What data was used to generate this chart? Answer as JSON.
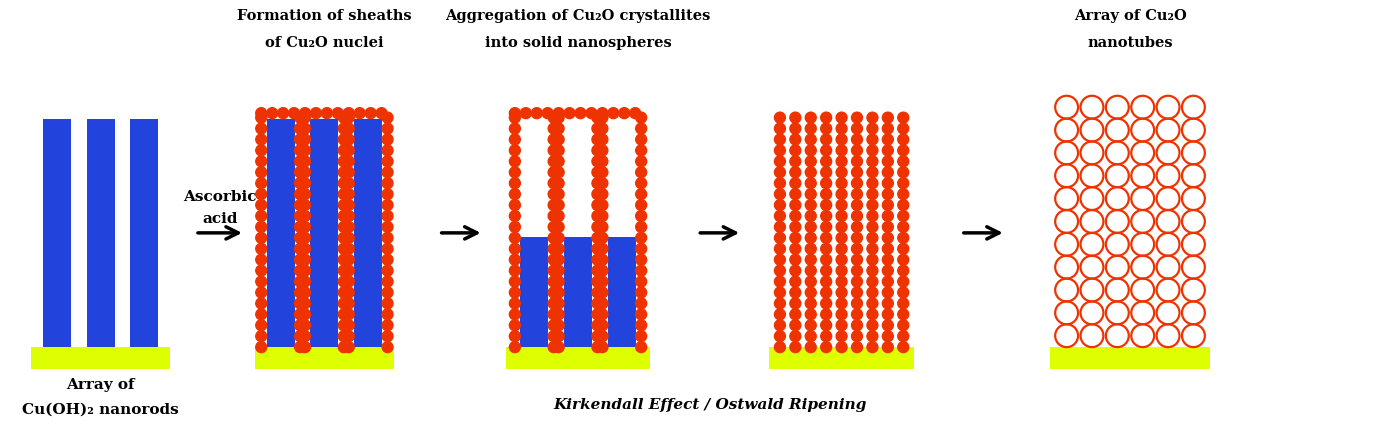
{
  "bg_color": "#ffffff",
  "blue": "#2244dd",
  "yellow": "#ddff00",
  "orange_red": "#ee3300",
  "black": "#000000",
  "fig_width": 13.9,
  "fig_height": 4.31,
  "stage1_label_line1": "Array of",
  "stage1_label_line2": "Cu(OH)₂ nanorods",
  "stage2_label_line1": "Formation of sheaths",
  "stage2_label_line2": "of Cu₂O nuclei",
  "stage3_label_line1": "Aggregation of Cu₂O crystallites",
  "stage3_label_line2": "into solid nanospheres",
  "stage4_label_line1": "Array of Cu₂O",
  "stage4_label_line2": "nanotubes",
  "arrow_label_line1": "Ascorbic",
  "arrow_label_line2": "acid",
  "bottom_label": "Kirkendall Effect / Ostwald Ripening"
}
